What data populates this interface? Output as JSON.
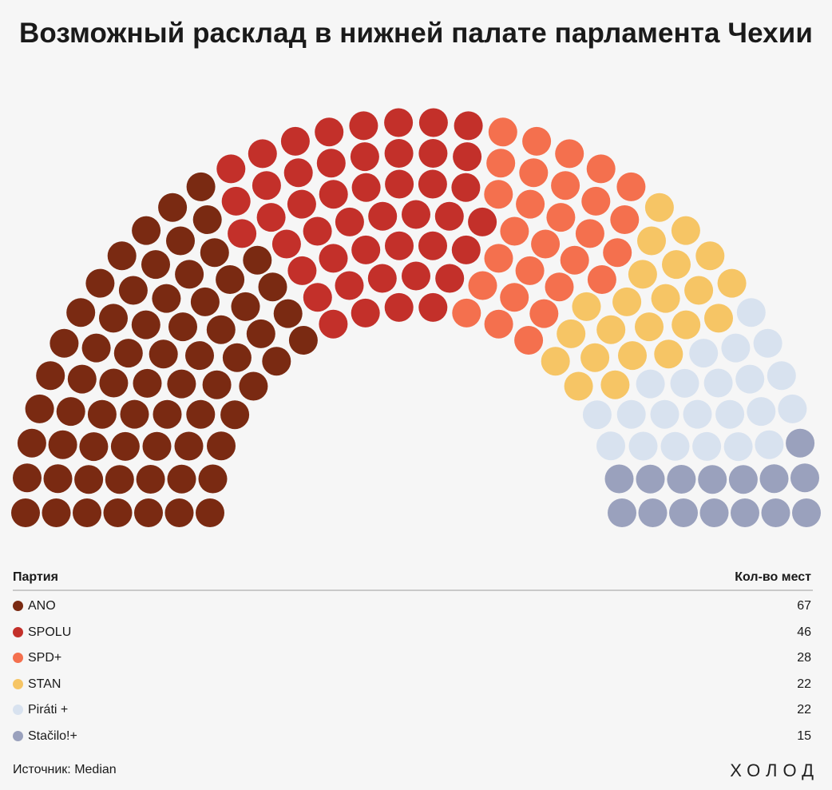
{
  "title": "Возможный расклад в нижней палате парламента Чехии",
  "table": {
    "party_header": "Партия",
    "seats_header": "Кол-во мест"
  },
  "chart_data": {
    "type": "parliament",
    "title": "Возможный расклад в нижней палате парламента Чехии",
    "total_seats": 200,
    "series": [
      {
        "name": "ANO",
        "seats": 67,
        "color": "#7a2a12"
      },
      {
        "name": "SPOLU",
        "seats": 46,
        "color": "#c3302a"
      },
      {
        "name": "SPD+",
        "seats": 28,
        "color": "#f4704e"
      },
      {
        "name": "STAN",
        "seats": 22,
        "color": "#f6c565"
      },
      {
        "name": "Piráti +",
        "seats": 22,
        "color": "#d8e2ef"
      },
      {
        "name": "Stačilo!+",
        "seats": 15,
        "color": "#9aa1bd"
      }
    ]
  },
  "source": "Источник: Median",
  "logo": "ХОЛОД"
}
